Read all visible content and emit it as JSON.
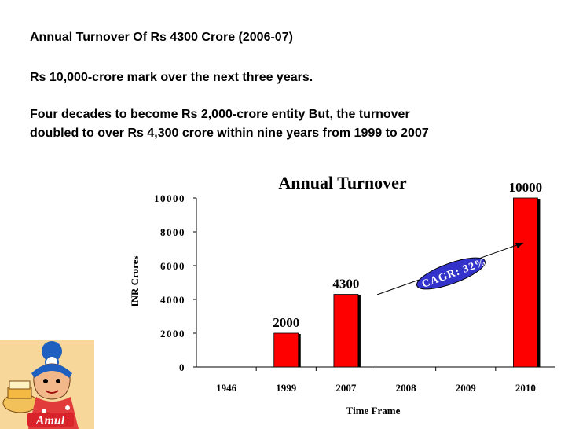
{
  "slide": {
    "line1": "Annual Turnover Of Rs 4300 Crore (2006-07)",
    "line2": "Rs 10,000-crore mark over the next three years.",
    "line3a": "Four decades to become Rs 2,000-crore entity But, the turnover",
    "line3b": "doubled to over Rs 4,300 crore within nine years from 1999 to 2007",
    "logo_text": "Amul"
  },
  "chart_data": {
    "type": "bar",
    "title": "Annual Turnover",
    "xlabel": "Time Frame",
    "ylabel": "INR Crores",
    "categories": [
      "1946",
      "1999",
      "2007",
      "2008",
      "2009",
      "2010"
    ],
    "series": [
      {
        "values": [
          0,
          2000,
          4300,
          0,
          0,
          10000
        ]
      }
    ],
    "data_labels": [
      "",
      "2000",
      "4300",
      "",
      "",
      "10000"
    ],
    "ylim": [
      0,
      10000
    ],
    "yticks": [
      0,
      2000,
      4000,
      6000,
      8000,
      10000
    ],
    "ytick_labels": [
      "0",
      "2000",
      "4000",
      "6000",
      "8000",
      "10000"
    ],
    "grid": false,
    "bar_color": "#ff0000",
    "annotation": {
      "text": "CAGR: 32%",
      "fill": "#3333cc",
      "text_color": "#ffffff"
    }
  }
}
